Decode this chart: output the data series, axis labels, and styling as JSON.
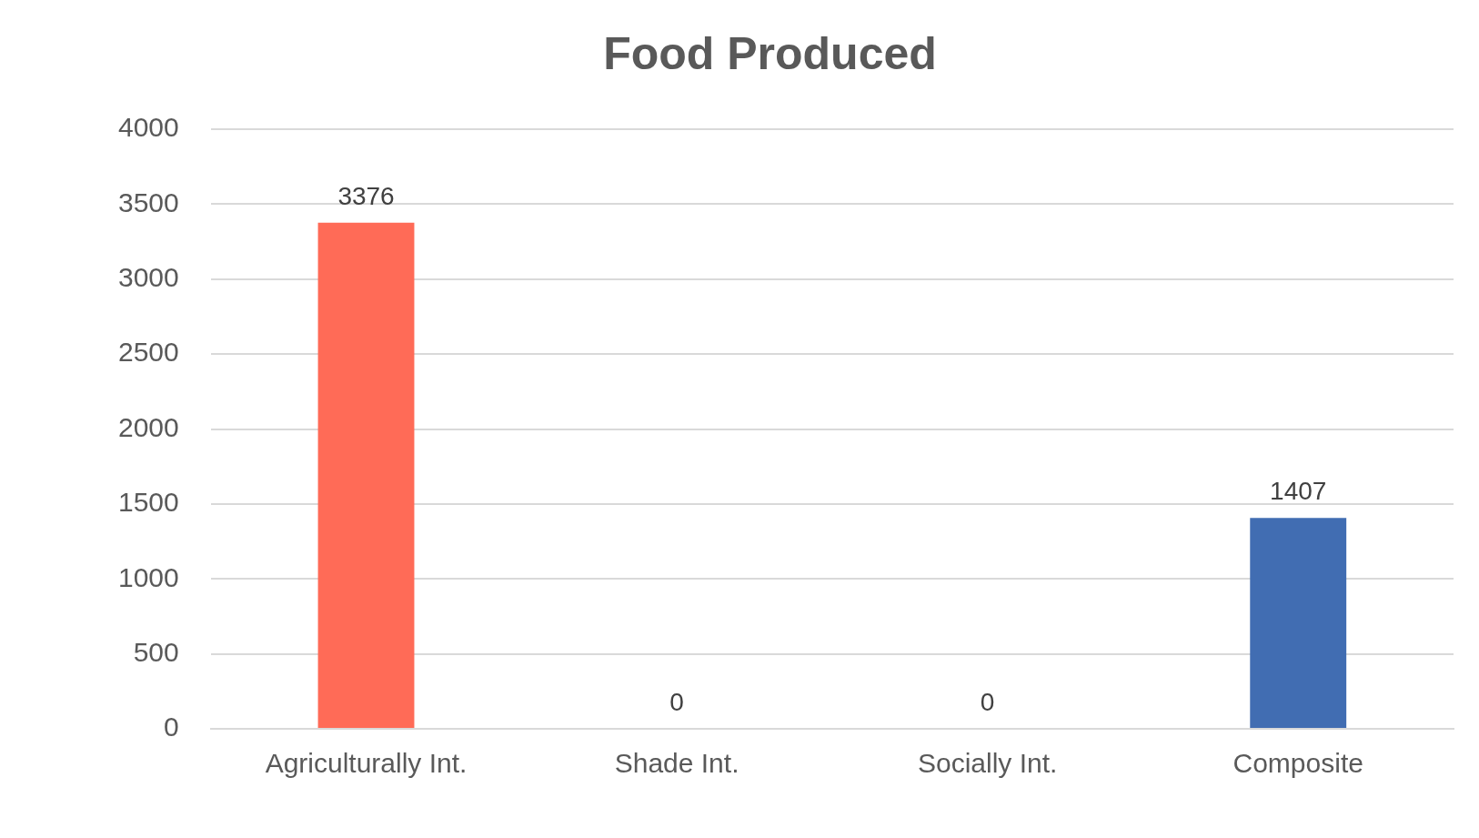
{
  "chart_data": {
    "type": "bar",
    "title": "Food Produced",
    "categories": [
      "Agriculturally Int.",
      "Shade Int.",
      "Socially Int.",
      "Composite"
    ],
    "values": [
      3376,
      0,
      0,
      1407
    ],
    "colors": [
      "#ff6b57",
      "#a5a5a5",
      "#ffc000",
      "#416db2"
    ],
    "ylim": [
      0,
      4000
    ],
    "yticks": [
      0,
      500,
      1000,
      1500,
      2000,
      2500,
      3000,
      3500,
      4000
    ],
    "grid": "y",
    "legend": false,
    "data_labels": true
  }
}
